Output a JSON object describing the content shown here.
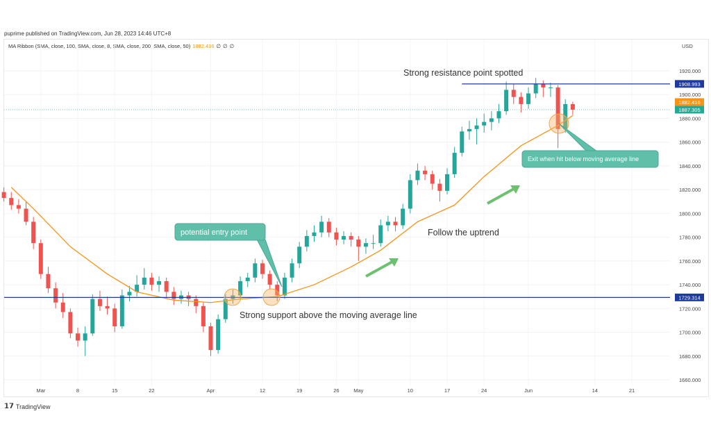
{
  "header": {
    "publisher": "puprime published on TradingView.com, Jun 28, 2023 14:46 UTC+8"
  },
  "legend": {
    "indicator": "MA Ribbon (SMA, close, 100, SMA, close, 8, SMA, close, 200, SMA, close, 50)",
    "value": "1882.416",
    "extra": [
      "∅",
      "∅",
      "∅"
    ]
  },
  "brand": {
    "logo": "TV",
    "name": "TradingView"
  },
  "chart_data": {
    "type": "candlestick",
    "currency": "USD",
    "ylim": [
      1650,
      1935
    ],
    "y_ticks": [
      "1920.000",
      "1900.000",
      "1880.000",
      "1860.000",
      "1840.000",
      "1820.000",
      "1800.000",
      "1780.000",
      "1760.000",
      "1740.000",
      "1720.000",
      "1700.000",
      "1680.000",
      "1660.000"
    ],
    "x_ticks": [
      {
        "label": "Mar",
        "date": "2023-03-01"
      },
      {
        "label": "8",
        "date": "2023-03-08"
      },
      {
        "label": "15",
        "date": "2023-03-15"
      },
      {
        "label": "22",
        "date": "2023-03-22"
      },
      {
        "label": "Apr",
        "date": "2023-04-03"
      },
      {
        "label": "12",
        "date": "2023-04-12"
      },
      {
        "label": "19",
        "date": "2023-04-19"
      },
      {
        "label": "26",
        "date": "2023-04-26"
      },
      {
        "label": "May",
        "date": "2023-05-01"
      },
      {
        "label": "10",
        "date": "2023-05-10"
      },
      {
        "label": "17",
        "date": "2023-05-17"
      },
      {
        "label": "24",
        "date": "2023-05-24"
      },
      {
        "label": "Jun",
        "date": "2023-06-01"
      },
      {
        "label": "14",
        "date": "2023-06-14"
      },
      {
        "label": "21",
        "date": "2023-06-21"
      }
    ],
    "colors": {
      "up": "#26a69a",
      "down": "#ef5350",
      "ma": "#f7931a",
      "level": "#1e3a9a",
      "last": "#22ab94",
      "callout": "#5fbfa8",
      "arrow": "#5cb85c"
    },
    "candles": [
      [
        "2023-02-22",
        1818,
        1822,
        1810,
        1813
      ],
      [
        "2023-02-23",
        1813,
        1818,
        1803,
        1807
      ],
      [
        "2023-02-24",
        1807,
        1812,
        1800,
        1804
      ],
      [
        "2023-02-27",
        1804,
        1810,
        1790,
        1793
      ],
      [
        "2023-02-28",
        1793,
        1797,
        1770,
        1775
      ],
      [
        "2023-03-01",
        1775,
        1778,
        1745,
        1749
      ],
      [
        "2023-03-02",
        1749,
        1755,
        1733,
        1737
      ],
      [
        "2023-03-03",
        1737,
        1742,
        1720,
        1725
      ],
      [
        "2023-03-06",
        1725,
        1733,
        1712,
        1717
      ],
      [
        "2023-03-07",
        1717,
        1720,
        1695,
        1699
      ],
      [
        "2023-03-08",
        1699,
        1704,
        1688,
        1693
      ],
      [
        "2023-03-09",
        1693,
        1705,
        1680,
        1699
      ],
      [
        "2023-03-10",
        1699,
        1732,
        1697,
        1728
      ],
      [
        "2023-03-13",
        1728,
        1735,
        1718,
        1722
      ],
      [
        "2023-03-14",
        1722,
        1730,
        1715,
        1720
      ],
      [
        "2023-03-15",
        1720,
        1724,
        1700,
        1705
      ],
      [
        "2023-03-16",
        1705,
        1736,
        1703,
        1731
      ],
      [
        "2023-03-17",
        1731,
        1739,
        1726,
        1734
      ],
      [
        "2023-03-20",
        1734,
        1748,
        1730,
        1740
      ],
      [
        "2023-03-21",
        1740,
        1754,
        1736,
        1746
      ],
      [
        "2023-03-22",
        1746,
        1750,
        1735,
        1740
      ],
      [
        "2023-03-23",
        1740,
        1747,
        1734,
        1743
      ],
      [
        "2023-03-24",
        1743,
        1746,
        1728,
        1734
      ],
      [
        "2023-03-27",
        1734,
        1738,
        1723,
        1728
      ],
      [
        "2023-03-28",
        1728,
        1735,
        1724,
        1731
      ],
      [
        "2023-03-29",
        1731,
        1734,
        1722,
        1728
      ],
      [
        "2023-03-30",
        1728,
        1731,
        1716,
        1722
      ],
      [
        "2023-03-31",
        1722,
        1725,
        1700,
        1705
      ],
      [
        "2023-04-03",
        1705,
        1708,
        1680,
        1685
      ],
      [
        "2023-04-04",
        1685,
        1715,
        1682,
        1711
      ],
      [
        "2023-04-05",
        1711,
        1732,
        1708,
        1728
      ],
      [
        "2023-04-06",
        1728,
        1736,
        1724,
        1731
      ],
      [
        "2023-04-07",
        1731,
        1747,
        1728,
        1743
      ],
      [
        "2023-04-10",
        1743,
        1750,
        1738,
        1746
      ],
      [
        "2023-04-11",
        1746,
        1762,
        1742,
        1758
      ],
      [
        "2023-04-12",
        1758,
        1761,
        1745,
        1749
      ],
      [
        "2023-04-13",
        1749,
        1752,
        1736,
        1740
      ],
      [
        "2023-04-14",
        1740,
        1743,
        1726,
        1731
      ],
      [
        "2023-04-17",
        1731,
        1750,
        1728,
        1746
      ],
      [
        "2023-04-18",
        1746,
        1762,
        1742,
        1758
      ],
      [
        "2023-04-19",
        1758,
        1776,
        1754,
        1772
      ],
      [
        "2023-04-20",
        1772,
        1786,
        1768,
        1781
      ],
      [
        "2023-04-21",
        1781,
        1790,
        1776,
        1784
      ],
      [
        "2023-04-24",
        1784,
        1798,
        1780,
        1793
      ],
      [
        "2023-04-25",
        1793,
        1796,
        1780,
        1784
      ],
      [
        "2023-04-26",
        1784,
        1788,
        1773,
        1778
      ],
      [
        "2023-04-27",
        1778,
        1785,
        1774,
        1781
      ],
      [
        "2023-04-28",
        1781,
        1784,
        1772,
        1778
      ],
      [
        "2023-05-01",
        1778,
        1781,
        1760,
        1772
      ],
      [
        "2023-05-02",
        1772,
        1779,
        1766,
        1775
      ],
      [
        "2023-05-03",
        1775,
        1782,
        1770,
        1775
      ],
      [
        "2023-05-04",
        1775,
        1795,
        1772,
        1790
      ],
      [
        "2023-05-05",
        1790,
        1798,
        1785,
        1793
      ],
      [
        "2023-05-08",
        1793,
        1797,
        1785,
        1790
      ],
      [
        "2023-05-09",
        1790,
        1808,
        1787,
        1804
      ],
      [
        "2023-05-10",
        1804,
        1833,
        1800,
        1828
      ],
      [
        "2023-05-11",
        1828,
        1842,
        1824,
        1836
      ],
      [
        "2023-05-12",
        1836,
        1840,
        1828,
        1833
      ],
      [
        "2023-05-15",
        1833,
        1836,
        1820,
        1825
      ],
      [
        "2023-05-16",
        1825,
        1829,
        1810,
        1819
      ],
      [
        "2023-05-17",
        1819,
        1838,
        1816,
        1833
      ],
      [
        "2023-05-18",
        1833,
        1856,
        1830,
        1851
      ],
      [
        "2023-05-19",
        1851,
        1873,
        1848,
        1869
      ],
      [
        "2023-05-22",
        1869,
        1878,
        1862,
        1871
      ],
      [
        "2023-05-23",
        1871,
        1880,
        1858,
        1874
      ],
      [
        "2023-05-24",
        1874,
        1884,
        1868,
        1877
      ],
      [
        "2023-05-25",
        1877,
        1886,
        1870,
        1880
      ],
      [
        "2023-05-26",
        1880,
        1892,
        1876,
        1886
      ],
      [
        "2023-05-29",
        1886,
        1911,
        1883,
        1904
      ],
      [
        "2023-05-30",
        1904,
        1909,
        1892,
        1898
      ],
      [
        "2023-05-31",
        1898,
        1902,
        1885,
        1892
      ],
      [
        "2023-06-01",
        1892,
        1906,
        1888,
        1901
      ],
      [
        "2023-06-02",
        1901,
        1914,
        1897,
        1909
      ],
      [
        "2023-06-05",
        1909,
        1912,
        1898,
        1906
      ],
      [
        "2023-06-06",
        1906,
        1910,
        1898,
        1906
      ],
      [
        "2023-06-07",
        1906,
        1908,
        1855,
        1871
      ],
      [
        "2023-06-08",
        1871,
        1896,
        1868,
        1892
      ],
      [
        "2023-06-09",
        1892,
        1894,
        1883,
        1887.305
      ]
    ],
    "ma_series": {
      "name": "SMA 50",
      "points": [
        [
          "2023-02-23",
          1822
        ],
        [
          "2023-02-28",
          1804
        ],
        [
          "2023-03-07",
          1772
        ],
        [
          "2023-03-14",
          1749
        ],
        [
          "2023-03-20",
          1734
        ],
        [
          "2023-03-27",
          1727
        ],
        [
          "2023-04-03",
          1725
        ],
        [
          "2023-04-07",
          1728
        ],
        [
          "2023-04-14",
          1730
        ],
        [
          "2023-04-21",
          1740
        ],
        [
          "2023-04-28",
          1755
        ],
        [
          "2023-05-04",
          1769
        ],
        [
          "2023-05-11",
          1793
        ],
        [
          "2023-05-18",
          1807
        ],
        [
          "2023-05-24",
          1831
        ],
        [
          "2023-05-31",
          1857
        ],
        [
          "2023-06-07",
          1874
        ],
        [
          "2023-06-09",
          1882.416
        ]
      ]
    },
    "levels": [
      {
        "label": "1908.993",
        "value": 1908.993,
        "from": "2023-05-19"
      },
      {
        "label": "1729.314",
        "value": 1729.314,
        "from": "2023-02-22"
      }
    ],
    "last_price": {
      "label": "1887.305",
      "value": 1887.305
    },
    "ma_last": {
      "label": "1882.416",
      "value": 1882.416
    },
    "annotations": {
      "resistance": "Strong resistance point spotted",
      "support": "Strong support above the moving average line",
      "uptrend": "Follow the uptrend",
      "entry": "potential entry point",
      "exit": "Exit when hit below moving average line"
    }
  }
}
